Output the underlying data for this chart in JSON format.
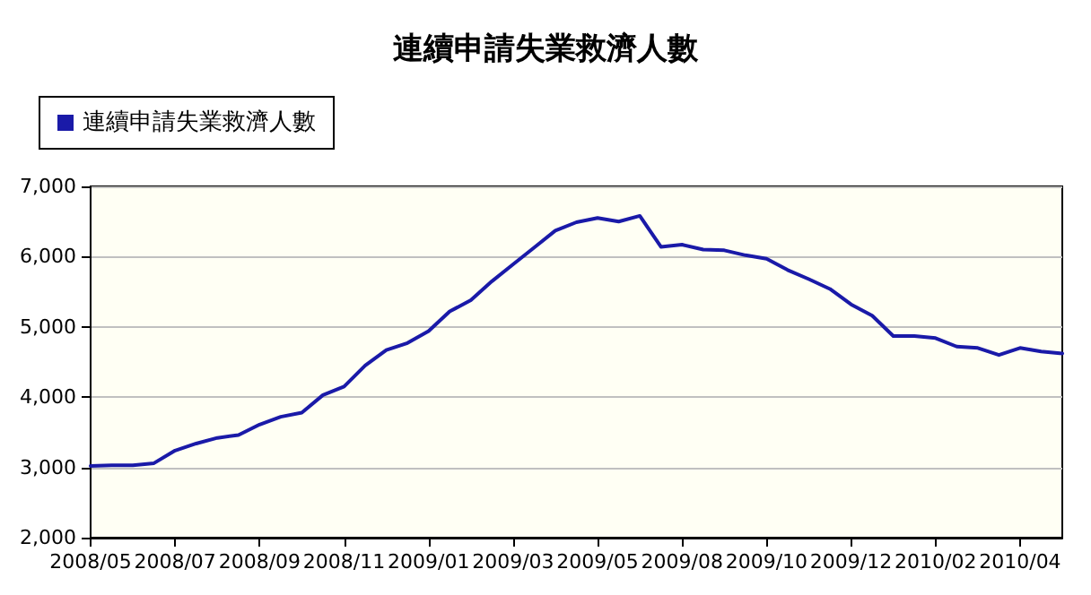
{
  "chart_data": {
    "type": "line",
    "title": "連續申請失業救濟人數",
    "categories": [
      "2008/05",
      null,
      null,
      null,
      "2008/07",
      null,
      null,
      null,
      "2008/09",
      null,
      null,
      null,
      "2008/11",
      null,
      null,
      null,
      "2009/01",
      null,
      null,
      null,
      "2009/03",
      null,
      null,
      null,
      "2009/05",
      null,
      null,
      null,
      "2009/08",
      null,
      null,
      null,
      "2009/10",
      null,
      null,
      null,
      "2009/12",
      null,
      null,
      null,
      "2010/02",
      null,
      null,
      null,
      "2010/04",
      null,
      null
    ],
    "series": [
      {
        "name": "連續申請失業救濟人數",
        "color": "#1a1aa8",
        "values": [
          3020,
          3030,
          3030,
          3060,
          3240,
          3340,
          3420,
          3460,
          3610,
          3720,
          3780,
          4030,
          4150,
          4450,
          4670,
          4770,
          4940,
          5220,
          5380,
          5650,
          5890,
          6130,
          6370,
          6490,
          6550,
          6500,
          6580,
          6140,
          6170,
          6100,
          6090,
          6020,
          5970,
          5810,
          5680,
          5540,
          5320,
          5160,
          4870,
          4870,
          4840,
          4720,
          4700,
          4600,
          4700,
          4650,
          4620
        ]
      }
    ],
    "ylim": [
      2000,
      7000
    ],
    "yticks": [
      {
        "value": 2000,
        "label": "2,000"
      },
      {
        "value": 3000,
        "label": "3,000"
      },
      {
        "value": 4000,
        "label": "4,000"
      },
      {
        "value": 5000,
        "label": "5,000"
      },
      {
        "value": 6000,
        "label": "6,000"
      },
      {
        "value": 7000,
        "label": "7,000"
      }
    ],
    "grid": "y",
    "legend": "top left",
    "marker": "none",
    "line_style": "solid"
  }
}
